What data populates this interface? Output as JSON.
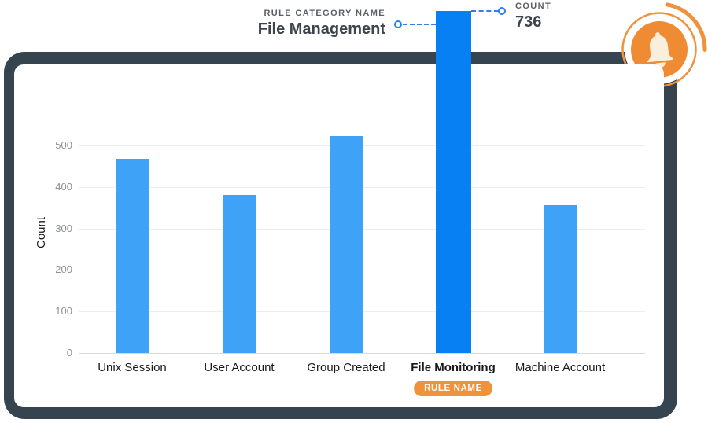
{
  "annotations": {
    "category_label": "RULE CATEGORY NAME",
    "category_value": "File Management",
    "count_label": "COUNT",
    "count_value": "736",
    "rule_name_badge": "RULE NAME"
  },
  "chart_data": {
    "type": "bar",
    "title": "",
    "categories": [
      "Unix Session",
      "User Account",
      "Group Created",
      "File Monitoring",
      "Machine Account"
    ],
    "values": [
      468,
      380,
      522,
      736,
      356
    ],
    "xlabel": "",
    "ylabel": "Count",
    "ylim": [
      0,
      500
    ],
    "yticks": [
      0,
      100,
      200,
      300,
      400,
      500
    ],
    "grid": true,
    "legend": false,
    "highlight": {
      "index": 3,
      "category": "File Monitoring",
      "value": 736,
      "extends_above_plot": true
    },
    "colors": {
      "bar": "#3EA2F7",
      "highlight_bar": "#0680F2"
    }
  },
  "icon": {
    "name": "bell-icon",
    "circle_color": "#EF8C33",
    "ring_color": "#F0913B",
    "glyph_color": "#FAEEDC"
  },
  "theme": {
    "backdrop": "#364450",
    "card": "#FFFFFF",
    "annotation_blue": "#2E7FF0",
    "text_dark": "#3C444D",
    "text_gray": "#5A6066",
    "tick_gray": "#8D9196"
  }
}
